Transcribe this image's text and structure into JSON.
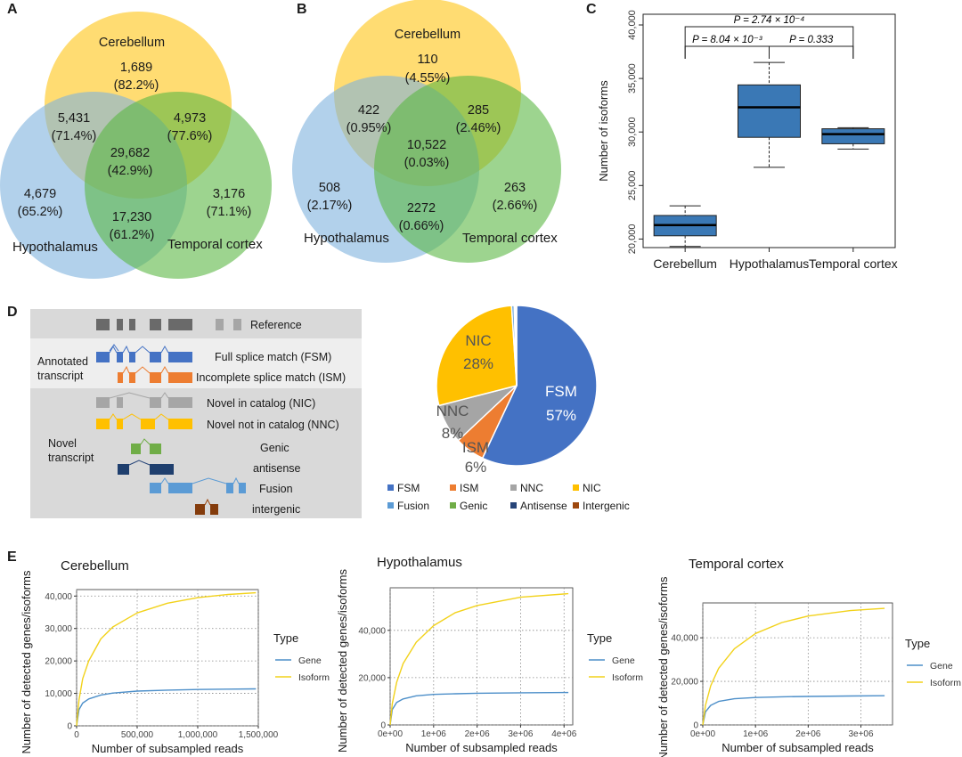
{
  "panels": {
    "a": "A",
    "b": "B",
    "c": "C",
    "d": "D",
    "e": "E"
  },
  "venn_a": {
    "cerebellum_label": "Cerebellum",
    "hypothalamus_label": "Hypothalamus",
    "temporal_label": "Temporal cortex",
    "regions": {
      "c_only": [
        "1,689",
        "(82.2%)"
      ],
      "ch": [
        "5,431",
        "(71.4%)"
      ],
      "ct": [
        "4,973",
        "(77.6%)"
      ],
      "all": [
        "29,682",
        "(42.9%)"
      ],
      "h_only": [
        "4,679",
        "(65.2%)"
      ],
      "t_only": [
        "3,176",
        "(71.1%)"
      ],
      "ht": [
        "17,230",
        "(61.2%)"
      ]
    }
  },
  "venn_b": {
    "cerebellum_label": "Cerebellum",
    "hypothalamus_label": "Hypothalamus",
    "temporal_label": "Temporal cortex",
    "regions": {
      "c_only": [
        "110",
        "(4.55%)"
      ],
      "ch": [
        "422",
        "(0.95%)"
      ],
      "ct": [
        "285",
        "(2.46%)"
      ],
      "all": [
        "10,522",
        "(0.03%)"
      ],
      "h_only": [
        "508",
        "(2.17%)"
      ],
      "t_only": [
        "263",
        "(2.66%)"
      ],
      "ht": [
        "2272",
        "(0.66%)"
      ]
    }
  },
  "chart_data": [
    {
      "type": "box",
      "ylabel": "Number of isoforms",
      "ylim": [
        19200,
        41000
      ],
      "yticks": [
        "20,000",
        "25,000",
        "30,000",
        "35,000",
        "40,000"
      ],
      "ytick_values": [
        20000,
        25000,
        30000,
        35000,
        40000
      ],
      "categories": [
        "Cerebellum",
        "Hypothalamus",
        "Temporal cortex"
      ],
      "boxes": [
        {
          "min": 19300,
          "q1": 20300,
          "median": 21300,
          "q3": 22200,
          "max": 23100
        },
        {
          "min": 26700,
          "q1": 29500,
          "median": 32300,
          "q3": 34400,
          "max": 36500
        },
        {
          "min": 28400,
          "q1": 28900,
          "median": 29800,
          "q3": 30300,
          "max": 30400
        }
      ],
      "annotations": [
        "P = 2.74 × 10⁻⁴",
        "P = 8.04 × 10⁻³",
        "P = 0.333"
      ],
      "color": "#3a78b5"
    },
    {
      "type": "pie",
      "slices": [
        {
          "name": "FSM",
          "value": 57,
          "label": "FSM",
          "pct": "57%",
          "color": "#4472c4"
        },
        {
          "name": "ISM",
          "value": 6,
          "label": "ISM",
          "pct": "6%",
          "color": "#ed7d31"
        },
        {
          "name": "NNC",
          "value": 8,
          "label": "NNC",
          "pct": "8%",
          "color": "#a5a5a5"
        },
        {
          "name": "NIC",
          "value": 28,
          "label": "NIC",
          "pct": "28%",
          "color": "#ffc000"
        },
        {
          "name": "Fusion",
          "value": 0.5,
          "label": "",
          "pct": "",
          "color": "#5b9bd5"
        },
        {
          "name": "Genic",
          "value": 0.2,
          "label": "",
          "pct": "",
          "color": "#70ad47"
        },
        {
          "name": "Antisense",
          "value": 0.2,
          "label": "",
          "pct": "",
          "color": "#264478"
        },
        {
          "name": "Intergenic",
          "value": 0.1,
          "label": "",
          "pct": "",
          "color": "#9e480e"
        }
      ],
      "legend": [
        "FSM",
        "ISM",
        "NNC",
        "NIC",
        "Fusion",
        "Genic",
        "Antisense",
        "Intergenic"
      ]
    },
    {
      "type": "line",
      "title": "Cerebellum",
      "xlabel": "Number of subsampled reads",
      "ylabel": "Number of detected genes/isoforms",
      "xlim": [
        0,
        1500000
      ],
      "ylim": [
        0,
        42000
      ],
      "xticks": [
        "0",
        "500,000",
        "1,000,000",
        "1,500,000"
      ],
      "xtick_values": [
        0,
        500000,
        1000000,
        1500000
      ],
      "yticks": [
        "0",
        "10,000",
        "20,000",
        "30,000",
        "40,000"
      ],
      "ytick_values": [
        0,
        10000,
        20000,
        30000,
        40000
      ],
      "series": [
        {
          "name": "Gene",
          "x": [
            0,
            20000,
            50000,
            100000,
            200000,
            300000,
            500000,
            750000,
            1000000,
            1250000,
            1480000
          ],
          "y": [
            0,
            5000,
            7000,
            8300,
            9500,
            10100,
            10700,
            11000,
            11200,
            11300,
            11400
          ]
        },
        {
          "name": "Isoform",
          "x": [
            0,
            20000,
            50000,
            100000,
            200000,
            300000,
            500000,
            750000,
            1000000,
            1250000,
            1480000
          ],
          "y": [
            0,
            8000,
            14500,
            20000,
            26800,
            30500,
            34800,
            37800,
            39500,
            40500,
            41000
          ]
        }
      ]
    },
    {
      "type": "line",
      "title": "Hypothalamus",
      "xlabel": "Number of subsampled reads",
      "ylabel": "Number of detected genes/isoforms",
      "xlim": [
        0,
        4200000
      ],
      "ylim": [
        0,
        58000
      ],
      "xticks": [
        "0e+00",
        "1e+06",
        "2e+06",
        "3e+06",
        "4e+06"
      ],
      "xtick_values": [
        0,
        1000000,
        2000000,
        3000000,
        4000000
      ],
      "yticks": [
        "0",
        "20,000",
        "40,000"
      ],
      "ytick_values": [
        0,
        20000,
        40000
      ],
      "series": [
        {
          "name": "Gene",
          "x": [
            0,
            50000,
            150000,
            300000,
            600000,
            1000000,
            1500000,
            2000000,
            3000000,
            4100000
          ],
          "y": [
            0,
            6500,
            9500,
            11000,
            12300,
            12900,
            13200,
            13400,
            13600,
            13700
          ]
        },
        {
          "name": "Isoform",
          "x": [
            0,
            50000,
            150000,
            300000,
            600000,
            1000000,
            1500000,
            2000000,
            3000000,
            4100000
          ],
          "y": [
            0,
            9000,
            18000,
            26000,
            35000,
            42000,
            47500,
            50500,
            54000,
            55500
          ]
        }
      ]
    },
    {
      "type": "line",
      "title": "Temporal cortex",
      "xlabel": "Number of subsampled reads",
      "ylabel": "Number of detected genes/isoforms",
      "xlim": [
        0,
        3600000
      ],
      "ylim": [
        0,
        56000
      ],
      "xticks": [
        "0e+00",
        "1e+06",
        "2e+06",
        "3e+06"
      ],
      "xtick_values": [
        0,
        1000000,
        2000000,
        3000000
      ],
      "yticks": [
        "0",
        "20,000",
        "40,000"
      ],
      "ytick_values": [
        0,
        20000,
        40000
      ],
      "series": [
        {
          "name": "Gene",
          "x": [
            0,
            50000,
            150000,
            300000,
            600000,
            1000000,
            1500000,
            2000000,
            2800000,
            3450000
          ],
          "y": [
            0,
            6000,
            9000,
            10800,
            12000,
            12600,
            12900,
            13100,
            13300,
            13400
          ]
        },
        {
          "name": "Isoform",
          "x": [
            0,
            50000,
            150000,
            300000,
            600000,
            1000000,
            1500000,
            2000000,
            2800000,
            3450000
          ],
          "y": [
            0,
            9000,
            18000,
            26000,
            35000,
            42000,
            47000,
            50000,
            52500,
            53500
          ]
        }
      ]
    }
  ],
  "legend_e": {
    "title": "Type",
    "gene": "Gene",
    "isoform": "Isoform",
    "gene_color": "#4d8fc9",
    "isoform_color": "#f2d21b"
  },
  "panel_d": {
    "reference": "Reference",
    "fsm": "Full splice match (FSM)",
    "ism": "Incomplete splice match (ISM)",
    "nic": "Novel in catalog (NIC)",
    "nnc": "Novel not in catalog (NNC)",
    "genic": "Genic",
    "antisense": "antisense",
    "fusion": "Fusion",
    "intergenic": "intergenic",
    "annotated_1": "Annotated",
    "annotated_2": "transcript",
    "novel_1": "Novel",
    "novel_2": "transcript"
  }
}
